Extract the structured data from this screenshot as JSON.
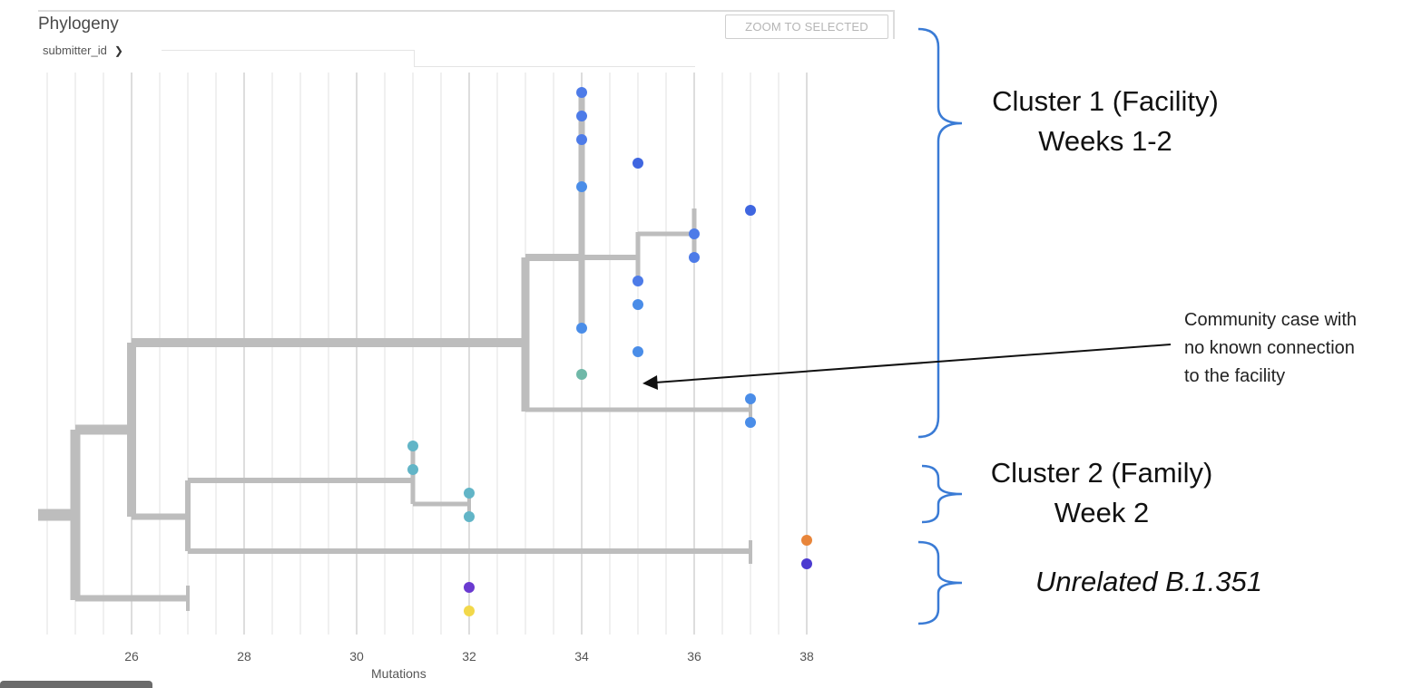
{
  "panel": {
    "title": "Phylogeny",
    "color_by": "submitter_id",
    "zoom_button": "ZOOM TO SELECTED"
  },
  "axis": {
    "title": "Mutations",
    "ticks": [
      "26",
      "28",
      "30",
      "32",
      "34",
      "36",
      "38"
    ]
  },
  "tree": {
    "clusters": [
      {
        "name": "Cluster 1 (Facility)",
        "period": "Weeks 1-2"
      },
      {
        "name": "Cluster 2 (Family)",
        "period": "Week 2"
      },
      {
        "name": "Unrelated B.1.351",
        "period": ""
      }
    ],
    "annotation": [
      "Community case with",
      "no known connection",
      "to the facility"
    ]
  },
  "colors": {
    "branch_gray": "#bdbdbd",
    "blue_tip": "#4d7be8",
    "light_blue_tip": "#4a8de8",
    "teal_tip": "#62b5c7",
    "green_tip": "#6fb8a8",
    "orange_tip": "#e8853a",
    "purple_tip": "#6a3ad0",
    "yellow_tip": "#f2d84a",
    "bracket_blue": "#3a7bd5"
  }
}
